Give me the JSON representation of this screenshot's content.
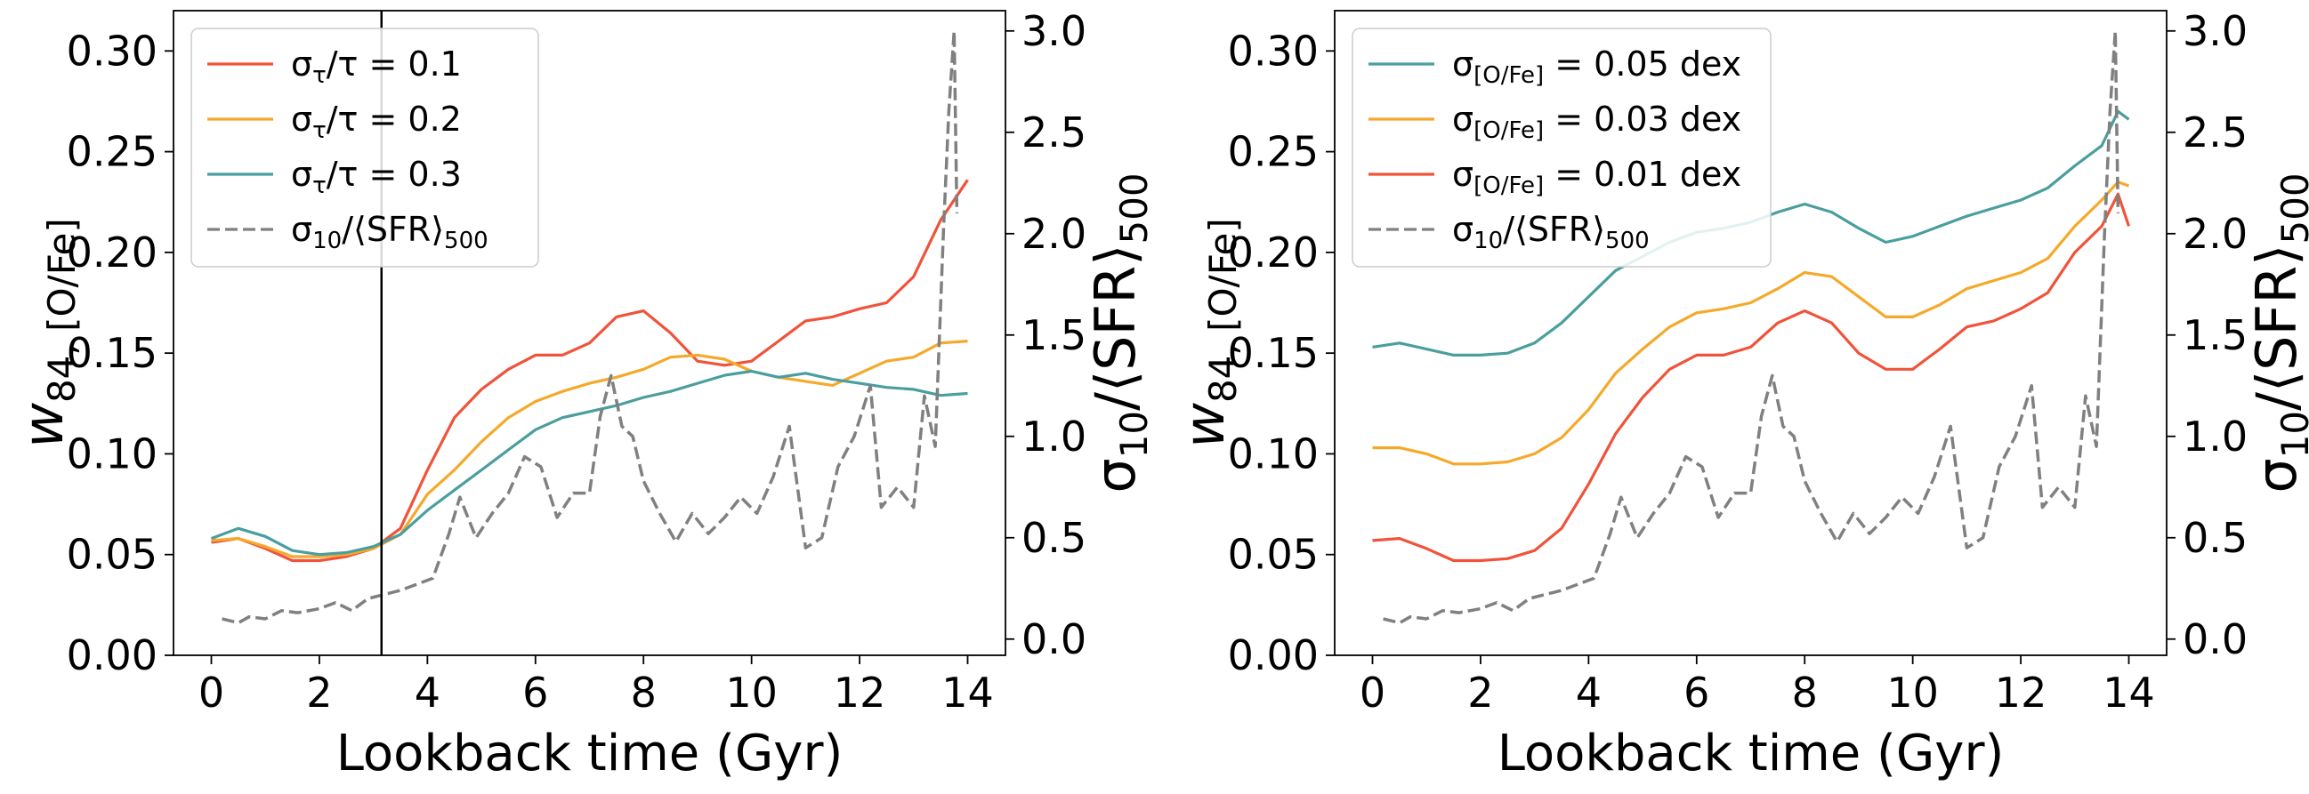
{
  "chart_data": [
    {
      "type": "line",
      "panel": "left",
      "xlabel": "Lookback time (Gyr)",
      "ylabel": "w84, [O/Fe]",
      "ylabel_right": "σ10/⟨SFR⟩500",
      "xlim": [
        -0.7,
        14.7
      ],
      "ylim": [
        0,
        0.32
      ],
      "ylim_right": [
        -0.08,
        3.1
      ],
      "xticks": [
        0,
        2,
        4,
        6,
        8,
        10,
        12,
        14
      ],
      "yticks": [
        "0.00",
        "0.05",
        "0.10",
        "0.15",
        "0.20",
        "0.25",
        "0.30"
      ],
      "yticks_right": [
        "0.0",
        "0.5",
        "1.0",
        "1.5",
        "2.0",
        "2.5",
        "3.0"
      ],
      "vline_x": 3.15,
      "legend_position": "top-left",
      "series": [
        {
          "name": "στ/τ = 0.1",
          "color": "#f0533a",
          "axis": "left",
          "dash": false,
          "x": [
            0,
            0.5,
            1,
            1.5,
            2,
            2.5,
            3,
            3.5,
            4,
            4.5,
            5,
            5.5,
            6,
            6.5,
            7,
            7.5,
            8,
            8.5,
            9,
            9.5,
            10,
            10.5,
            11,
            11.5,
            12,
            12.5,
            13,
            13.5,
            14
          ],
          "y": [
            0.056,
            0.058,
            0.053,
            0.047,
            0.047,
            0.049,
            0.053,
            0.063,
            0.092,
            0.118,
            0.132,
            0.142,
            0.149,
            0.149,
            0.155,
            0.168,
            0.171,
            0.16,
            0.146,
            0.144,
            0.146,
            0.156,
            0.166,
            0.168,
            0.172,
            0.175,
            0.188,
            0.216,
            0.236
          ]
        },
        {
          "name": "στ/τ = 0.2",
          "color": "#f5a92a",
          "axis": "left",
          "dash": false,
          "x": [
            0,
            0.5,
            1,
            1.5,
            2,
            2.5,
            3,
            3.5,
            4,
            4.5,
            5,
            5.5,
            6,
            6.5,
            7,
            7.5,
            8,
            8.5,
            9,
            9.5,
            10,
            10.5,
            11,
            11.5,
            12,
            12.5,
            13,
            13.5,
            14
          ],
          "y": [
            0.057,
            0.058,
            0.054,
            0.049,
            0.049,
            0.05,
            0.053,
            0.06,
            0.08,
            0.092,
            0.106,
            0.118,
            0.126,
            0.131,
            0.135,
            0.138,
            0.142,
            0.148,
            0.149,
            0.147,
            0.141,
            0.138,
            0.136,
            0.134,
            0.14,
            0.146,
            0.148,
            0.155,
            0.156
          ]
        },
        {
          "name": "στ/τ = 0.3",
          "color": "#4a9e9e",
          "axis": "left",
          "dash": false,
          "x": [
            0,
            0.5,
            1,
            1.5,
            2,
            2.5,
            3,
            3.5,
            4,
            4.5,
            5,
            5.5,
            6,
            6.5,
            7,
            7.5,
            8,
            8.5,
            9,
            9.5,
            10,
            10.5,
            11,
            11.5,
            12,
            12.5,
            13,
            13.5,
            14
          ],
          "y": [
            0.058,
            0.063,
            0.059,
            0.052,
            0.05,
            0.051,
            0.054,
            0.06,
            0.072,
            0.082,
            0.092,
            0.102,
            0.112,
            0.118,
            0.121,
            0.124,
            0.128,
            0.131,
            0.135,
            0.139,
            0.141,
            0.138,
            0.14,
            0.137,
            0.135,
            0.133,
            0.132,
            0.129,
            0.13
          ]
        },
        {
          "name": "σ10/⟨SFR⟩500",
          "color": "#808080",
          "axis": "right",
          "dash": true,
          "x": [
            0.2,
            0.5,
            0.7,
            1,
            1.3,
            1.6,
            2,
            2.3,
            2.6,
            2.9,
            3.2,
            3.5,
            3.8,
            4.1,
            4.4,
            4.6,
            4.9,
            5.2,
            5.5,
            5.8,
            6.1,
            6.4,
            6.7,
            7,
            7.2,
            7.4,
            7.6,
            7.8,
            8,
            8.3,
            8.6,
            8.9,
            9.2,
            9.5,
            9.8,
            10.1,
            10.4,
            10.7,
            11,
            11.3,
            11.6,
            11.9,
            12.2,
            12.4,
            12.7,
            13,
            13.2,
            13.4,
            13.55,
            13.65,
            13.75,
            13.8
          ],
          "y": [
            0.1,
            0.08,
            0.11,
            0.1,
            0.14,
            0.13,
            0.15,
            0.18,
            0.14,
            0.2,
            0.22,
            0.24,
            0.27,
            0.3,
            0.52,
            0.7,
            0.5,
            0.62,
            0.72,
            0.9,
            0.85,
            0.6,
            0.72,
            0.72,
            1.1,
            1.3,
            1.05,
            1.0,
            0.78,
            0.62,
            0.48,
            0.62,
            0.52,
            0.6,
            0.7,
            0.62,
            0.8,
            1.05,
            0.45,
            0.5,
            0.85,
            1.0,
            1.25,
            0.65,
            0.75,
            0.65,
            1.2,
            0.95,
            2.0,
            2.6,
            3.0,
            2.1
          ]
        }
      ]
    },
    {
      "type": "line",
      "panel": "right",
      "xlabel": "Lookback time (Gyr)",
      "ylabel": "w84, [O/Fe]",
      "ylabel_right": "σ10/⟨SFR⟩500",
      "xlim": [
        -0.7,
        14.7
      ],
      "ylim": [
        0,
        0.32
      ],
      "ylim_right": [
        -0.08,
        3.1
      ],
      "xticks": [
        0,
        2,
        4,
        6,
        8,
        10,
        12,
        14
      ],
      "yticks": [
        "0.00",
        "0.05",
        "0.10",
        "0.15",
        "0.20",
        "0.25",
        "0.30"
      ],
      "yticks_right": [
        "0.0",
        "0.5",
        "1.0",
        "1.5",
        "2.0",
        "2.5",
        "3.0"
      ],
      "legend_position": "top-left",
      "series": [
        {
          "name": "σ[O/Fe] = 0.05 dex",
          "color": "#4a9e9e",
          "axis": "left",
          "dash": false,
          "x": [
            0,
            0.5,
            1,
            1.5,
            2,
            2.5,
            3,
            3.5,
            4,
            4.5,
            5,
            5.5,
            6,
            6.5,
            7,
            7.5,
            8,
            8.5,
            9,
            9.5,
            10,
            10.5,
            11,
            11.5,
            12,
            12.5,
            13,
            13.5,
            13.8,
            14
          ],
          "y": [
            0.153,
            0.155,
            0.152,
            0.149,
            0.149,
            0.15,
            0.155,
            0.165,
            0.178,
            0.191,
            0.198,
            0.205,
            0.21,
            0.212,
            0.215,
            0.22,
            0.224,
            0.22,
            0.212,
            0.205,
            0.208,
            0.213,
            0.218,
            0.222,
            0.226,
            0.232,
            0.243,
            0.253,
            0.27,
            0.266
          ]
        },
        {
          "name": "σ[O/Fe] = 0.03 dex",
          "color": "#f5a92a",
          "axis": "left",
          "dash": false,
          "x": [
            0,
            0.5,
            1,
            1.5,
            2,
            2.5,
            3,
            3.5,
            4,
            4.5,
            5,
            5.5,
            6,
            6.5,
            7,
            7.5,
            8,
            8.5,
            9,
            9.5,
            10,
            10.5,
            11,
            11.5,
            12,
            12.5,
            13,
            13.5,
            13.8,
            14
          ],
          "y": [
            0.103,
            0.103,
            0.1,
            0.095,
            0.095,
            0.096,
            0.1,
            0.108,
            0.122,
            0.14,
            0.152,
            0.163,
            0.17,
            0.172,
            0.175,
            0.182,
            0.19,
            0.188,
            0.178,
            0.168,
            0.168,
            0.174,
            0.182,
            0.186,
            0.19,
            0.197,
            0.213,
            0.226,
            0.235,
            0.233
          ]
        },
        {
          "name": "σ[O/Fe] = 0.01 dex",
          "color": "#f0533a",
          "axis": "left",
          "dash": false,
          "x": [
            0,
            0.5,
            1,
            1.5,
            2,
            2.5,
            3,
            3.5,
            4,
            4.5,
            5,
            5.5,
            6,
            6.5,
            7,
            7.5,
            8,
            8.5,
            9,
            9.5,
            10,
            10.5,
            11,
            11.5,
            12,
            12.5,
            13,
            13.5,
            13.8,
            14
          ],
          "y": [
            0.057,
            0.058,
            0.053,
            0.047,
            0.047,
            0.048,
            0.052,
            0.063,
            0.085,
            0.11,
            0.128,
            0.142,
            0.149,
            0.149,
            0.153,
            0.165,
            0.171,
            0.165,
            0.15,
            0.142,
            0.142,
            0.152,
            0.163,
            0.166,
            0.172,
            0.18,
            0.2,
            0.213,
            0.229,
            0.213
          ]
        },
        {
          "name": "σ10/⟨SFR⟩500",
          "color": "#808080",
          "axis": "right",
          "dash": true,
          "x": [
            0.2,
            0.5,
            0.7,
            1,
            1.3,
            1.6,
            2,
            2.3,
            2.6,
            2.9,
            3.2,
            3.5,
            3.8,
            4.1,
            4.4,
            4.6,
            4.9,
            5.2,
            5.5,
            5.8,
            6.1,
            6.4,
            6.7,
            7,
            7.2,
            7.4,
            7.6,
            7.8,
            8,
            8.3,
            8.6,
            8.9,
            9.2,
            9.5,
            9.8,
            10.1,
            10.4,
            10.7,
            11,
            11.3,
            11.6,
            11.9,
            12.2,
            12.4,
            12.7,
            13,
            13.2,
            13.4,
            13.55,
            13.65,
            13.75,
            13.8
          ],
          "y": [
            0.1,
            0.08,
            0.11,
            0.1,
            0.14,
            0.13,
            0.15,
            0.18,
            0.14,
            0.2,
            0.22,
            0.24,
            0.27,
            0.3,
            0.52,
            0.7,
            0.5,
            0.62,
            0.72,
            0.9,
            0.85,
            0.6,
            0.72,
            0.72,
            1.1,
            1.3,
            1.05,
            1.0,
            0.78,
            0.62,
            0.48,
            0.62,
            0.52,
            0.6,
            0.7,
            0.62,
            0.8,
            1.05,
            0.45,
            0.5,
            0.85,
            1.0,
            1.25,
            0.65,
            0.75,
            0.65,
            1.2,
            0.95,
            2.0,
            2.6,
            3.0,
            2.1
          ]
        }
      ]
    }
  ]
}
